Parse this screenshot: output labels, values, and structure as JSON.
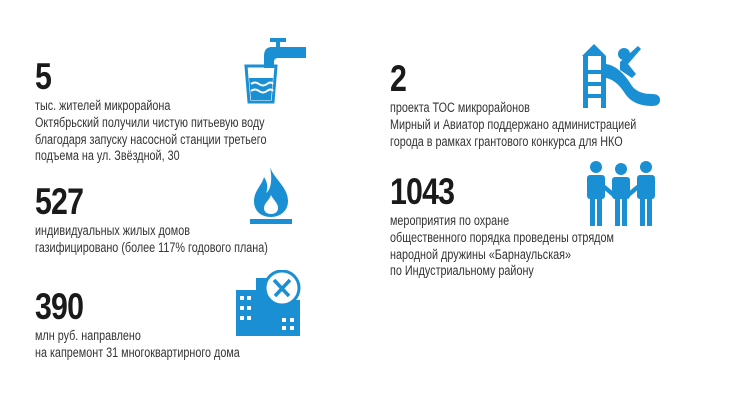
{
  "accent_color": "#1b8fd4",
  "stats": [
    {
      "number": "5",
      "lines": [
        "тыс. жителей микрорайона",
        "Октябрьский получили чистую питьевую воду",
        "благодаря запуску насосной станции третьего",
        "подъема на ул. Звёздной, 30"
      ],
      "icon": "water-tap-glass-icon"
    },
    {
      "number": "527",
      "lines": [
        "индивидуальных жилых домов",
        "газифицировано (более 117% годового плана)"
      ],
      "icon": "gas-flame-icon"
    },
    {
      "number": "390",
      "lines": [
        "млн руб. направлено",
        "на капремонт 31 многоквартирного дома"
      ],
      "icon": "buildings-tools-icon"
    },
    {
      "number": "2",
      "lines": [
        "проекта ТОС микрорайонов",
        "Мирный и Авиатор поддержано администрацией",
        "города в рамках грантового конкурса для НКО"
      ],
      "icon": "playground-slide-icon"
    },
    {
      "number": "1043",
      "lines": [
        "мероприятия по охране",
        "общественного порядка проведены отрядом",
        "народной дружины «Барнаульская»",
        "по Индустриальному району"
      ],
      "icon": "people-group-icon"
    }
  ]
}
